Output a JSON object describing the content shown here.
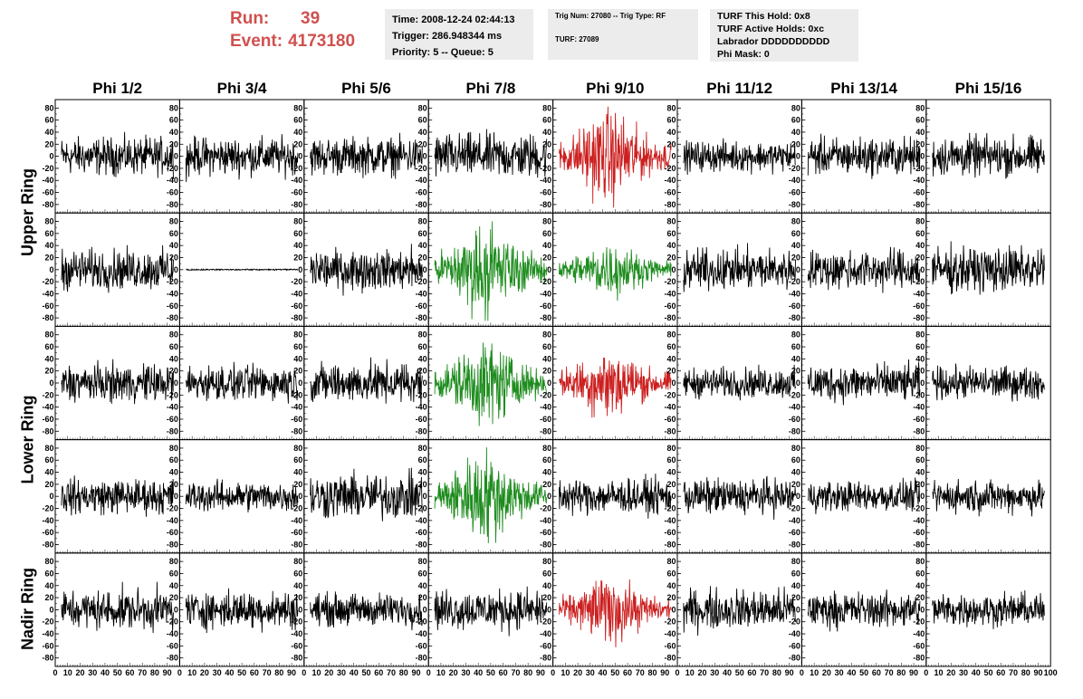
{
  "header": {
    "run_label": "Run:",
    "run_value": "39",
    "event_label": "Event:",
    "event_value": "4173180",
    "time": "Time: 2008-12-24 02:44:13",
    "trigger": "Trigger: 286.948344 ms",
    "priority": "Priority: 5 -- Queue: 5",
    "trig_num": "Trig Num: 27080 -- Trig Type: RF",
    "turf": "TURF: 27089",
    "turf_this_hold": "TURF This Hold: 0x8",
    "turf_active_holds": "TURF Active Holds: 0xc",
    "labrador": "Labrador DDDDDDDDDD",
    "phi_mask": "Phi Mask: 0"
  },
  "columns": [
    "Phi 1/2",
    "Phi 3/4",
    "Phi 5/6",
    "Phi 7/8",
    "Phi 9/10",
    "Phi 11/12",
    "Phi 13/14",
    "Phi 15/16"
  ],
  "ring_labels": [
    {
      "text": "Upper Ring",
      "rows": [
        0,
        1
      ]
    },
    {
      "text": "Lower Ring",
      "rows": [
        2,
        3
      ]
    },
    {
      "text": "Nadir Ring",
      "rows": [
        4,
        4
      ]
    }
  ],
  "colors": {
    "normal": "#000000",
    "triggered": "#cc1f1f",
    "l1": "#1e8c1e",
    "header_red": "#d0504f",
    "info_bg": "#ececec"
  },
  "chart_data": {
    "type": "line",
    "description_note": "",
    "xlim": [
      0,
      100
    ],
    "ylim": [
      -85,
      85
    ],
    "x_ticks": [
      "0",
      "10",
      "20",
      "30",
      "40",
      "50",
      "60",
      "70",
      "80",
      "90",
      "100"
    ],
    "y_ticks": [
      "80",
      "60",
      "40",
      "20",
      "0",
      "-20",
      "-40",
      "-60",
      "-80"
    ],
    "rows": 5,
    "cols": 8,
    "panels": [
      [
        "normal",
        "normal",
        "normal",
        "normal",
        "triggered",
        "normal",
        "normal",
        "normal"
      ],
      [
        "normal",
        "flat",
        "normal",
        "l1",
        "l1",
        "normal",
        "normal",
        "normal"
      ],
      [
        "normal",
        "normal",
        "normal",
        "l1",
        "triggered",
        "normal",
        "normal",
        "normal"
      ],
      [
        "normal",
        "normal",
        "normal",
        "l1",
        "normal",
        "normal",
        "normal",
        "normal"
      ],
      [
        "normal",
        "normal",
        "normal",
        "normal",
        "triggered",
        "normal",
        "normal",
        "normal"
      ]
    ],
    "amplitudes": [
      [
        15,
        15,
        15,
        18,
        30,
        12,
        15,
        16
      ],
      [
        16,
        2,
        16,
        30,
        18,
        16,
        16,
        18
      ],
      [
        15,
        14,
        16,
        28,
        24,
        12,
        15,
        13
      ],
      [
        14,
        12,
        18,
        30,
        14,
        14,
        12,
        13
      ],
      [
        16,
        15,
        13,
        16,
        22,
        16,
        14,
        13
      ]
    ]
  }
}
